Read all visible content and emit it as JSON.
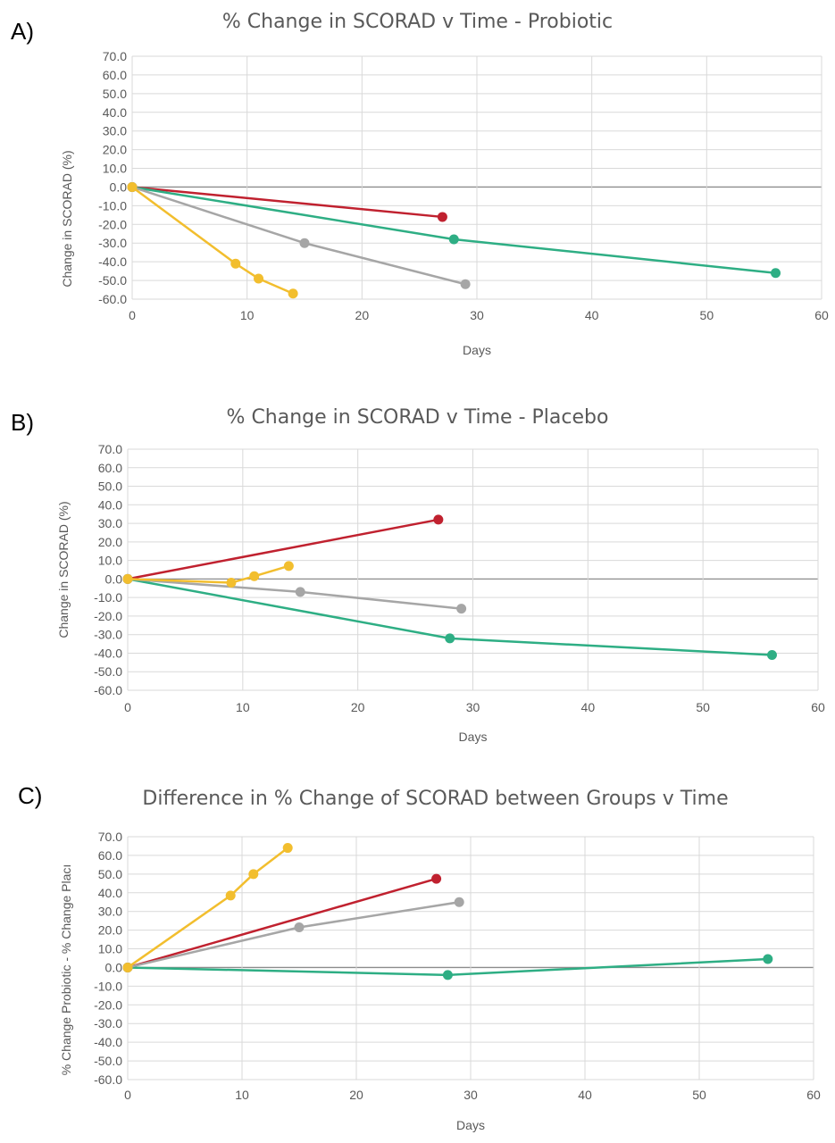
{
  "colors": {
    "red": "#c0212f",
    "green": "#2eae84",
    "gray": "#a6a6a6",
    "yellow": "#f2be2e",
    "grid": "#d9d9d9",
    "axis_text": "#595959"
  },
  "chart_data": [
    {
      "label": "A)",
      "type": "line",
      "title": "% Change in SCORAD v Time - Probiotic",
      "xlabel": "Days",
      "ylabel": "Change in SCORAD (%)",
      "xlim": [
        0,
        60
      ],
      "ylim": [
        -60,
        70
      ],
      "xticks": [
        0,
        10,
        20,
        30,
        40,
        50,
        60
      ],
      "yticks": [
        "70.0",
        "60.0",
        "50.0",
        "40.0",
        "30.0",
        "20.0",
        "10.0",
        "0.0",
        "-10.0",
        "-20.0",
        "-30.0",
        "-40.0",
        "-50.0",
        "-60.0"
      ],
      "grid": true,
      "series": [
        {
          "color": "red",
          "x": [
            0,
            27
          ],
          "y": [
            0,
            -16
          ]
        },
        {
          "color": "green",
          "x": [
            0,
            28,
            56
          ],
          "y": [
            0,
            -28,
            -46
          ]
        },
        {
          "color": "gray",
          "x": [
            0,
            15,
            29
          ],
          "y": [
            0,
            -30,
            -52
          ]
        },
        {
          "color": "yellow",
          "x": [
            0,
            9,
            11,
            14
          ],
          "y": [
            0,
            -41,
            -49,
            -57
          ]
        }
      ]
    },
    {
      "label": "B)",
      "type": "line",
      "title": "% Change in SCORAD v Time - Placebo",
      "xlabel": "Days",
      "ylabel": "Change in SCORAD (%)",
      "xlim": [
        0,
        60
      ],
      "ylim": [
        -60,
        70
      ],
      "xticks": [
        0,
        10,
        20,
        30,
        40,
        50,
        60
      ],
      "yticks": [
        "70.0",
        "60.0",
        "50.0",
        "40.0",
        "30.0",
        "20.0",
        "10.0",
        "0.0",
        "-10.0",
        "-20.0",
        "-30.0",
        "-40.0",
        "-50.0",
        "-60.0"
      ],
      "grid": true,
      "series": [
        {
          "color": "red",
          "x": [
            0,
            27
          ],
          "y": [
            0,
            32
          ]
        },
        {
          "color": "green",
          "x": [
            0,
            28,
            56
          ],
          "y": [
            0,
            -32,
            -41
          ]
        },
        {
          "color": "gray",
          "x": [
            0,
            15,
            29
          ],
          "y": [
            0,
            -7,
            -16
          ]
        },
        {
          "color": "yellow",
          "x": [
            0,
            9,
            11,
            14
          ],
          "y": [
            0,
            -2,
            1.5,
            7
          ]
        }
      ]
    },
    {
      "label": "C)",
      "type": "line",
      "title": "Difference in % Change of SCORAD between Groups v Time",
      "xlabel": "Days",
      "ylabel": "% Change Probiotic - % Change Placı",
      "xlim": [
        0,
        60
      ],
      "ylim": [
        -60,
        70
      ],
      "xticks": [
        0,
        10,
        20,
        30,
        40,
        50,
        60
      ],
      "yticks": [
        "70.0",
        "60.0",
        "50.0",
        "40.0",
        "30.0",
        "20.0",
        "10.0",
        "0.0",
        "-10.0",
        "-20.0",
        "-30.0",
        "-40.0",
        "-50.0",
        "-60.0"
      ],
      "grid": true,
      "series": [
        {
          "color": "red",
          "x": [
            0,
            27
          ],
          "y": [
            0,
            47.5
          ]
        },
        {
          "color": "green",
          "x": [
            0,
            28,
            56
          ],
          "y": [
            0,
            -4,
            4.5
          ]
        },
        {
          "color": "gray",
          "x": [
            0,
            15,
            29
          ],
          "y": [
            0,
            21.5,
            35
          ]
        },
        {
          "color": "yellow",
          "x": [
            0,
            9,
            11,
            14
          ],
          "y": [
            0,
            38.5,
            50,
            64
          ]
        }
      ]
    }
  ]
}
